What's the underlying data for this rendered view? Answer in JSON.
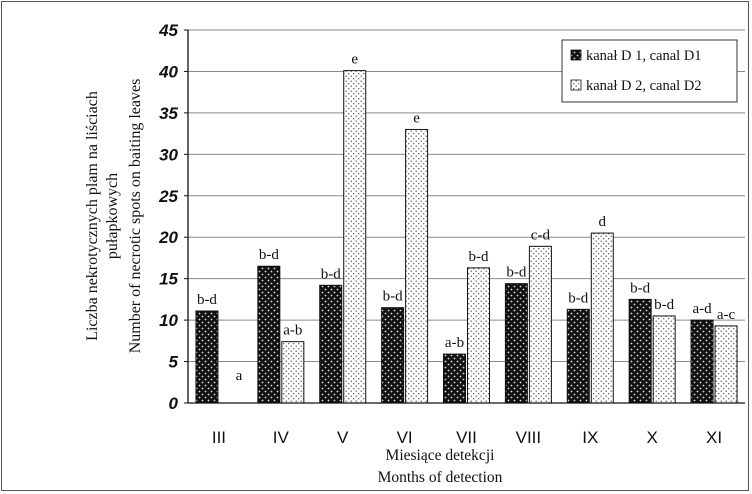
{
  "chart_data": {
    "type": "bar",
    "categories": [
      "III",
      "IV",
      "V",
      "VI",
      "VII",
      "VIII",
      "IX",
      "X",
      "XI"
    ],
    "series": [
      {
        "name": "kanał D 1, canal D1",
        "values": [
          11.1,
          16.5,
          14.2,
          11.5,
          5.9,
          14.4,
          11.3,
          12.5,
          10.0
        ],
        "labels": [
          "b-d",
          "b-d",
          "b-d",
          "b-d",
          "a-b",
          "b-d",
          "b-d",
          "b-d",
          "a-d"
        ]
      },
      {
        "name": "kanał D 2, canal D2",
        "values": [
          0,
          7.4,
          40.1,
          33.0,
          16.3,
          18.9,
          20.5,
          10.5,
          9.3
        ],
        "labels": [
          "a",
          "a-b",
          "e",
          "e",
          "b-d",
          "c-d",
          "d",
          "b-d",
          "a-c"
        ]
      }
    ],
    "ylim": [
      0,
      45
    ],
    "yticks": [
      0,
      5,
      10,
      15,
      20,
      25,
      30,
      35,
      40,
      45
    ],
    "ylabel_lines": [
      "Liczba nekrotycznych plam na liściach",
      "pułapkowych",
      "Number of necrotic spots on baiting leaves"
    ],
    "xlabel_lines": [
      "Miesiące detekcji",
      "Months of detection"
    ],
    "legend": "top-right",
    "grid": "horizontal",
    "colors": {
      "series1": "#111111",
      "series2": "#ffffff",
      "grid": "#8a8a8a"
    }
  }
}
